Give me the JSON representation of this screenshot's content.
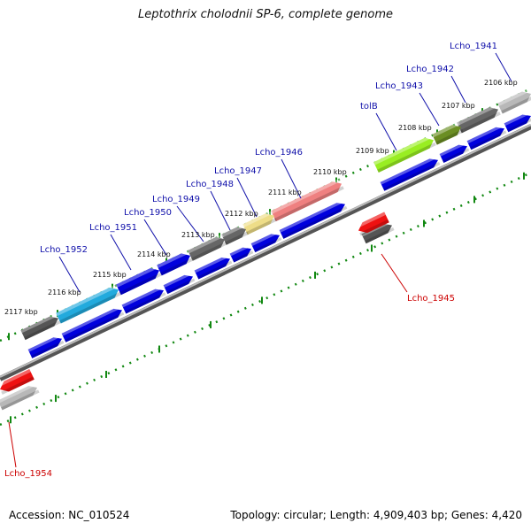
{
  "title": "Leptothrix cholodnii SP-6, complete genome",
  "footer": {
    "accession": "Accession: NC_010524",
    "summary": "Topology: circular; Length: 4,909,403 bp; Genes: 4,420"
  },
  "colors": {
    "backbone": "#8a8a8a",
    "tick": "#118811",
    "cds": "#0000dd",
    "label_forward": "#1010aa",
    "label_reverse": "#cc0000"
  },
  "kbp_ticks": [
    "2106 kbp",
    "2107 kbp",
    "2108 kbp",
    "2109 kbp",
    "2110 kbp",
    "2111 kbp",
    "2112 kbp",
    "2113 kbp",
    "2114 kbp",
    "2115 kbp",
    "2116 kbp",
    "2117 kbp"
  ],
  "genes": [
    {
      "name": "Lcho_1941",
      "strand": "forward",
      "color": "#b8b8b8"
    },
    {
      "name": "Lcho_1942",
      "strand": "forward",
      "color": "#666666"
    },
    {
      "name": "Lcho_1943",
      "strand": "forward",
      "color": "#6b8e23"
    },
    {
      "name": "tolB",
      "strand": "forward",
      "color": "#99ee22"
    },
    {
      "name": "Lcho_1945",
      "strand": "reverse",
      "color": "#ee1111"
    },
    {
      "name": "Lcho_1946",
      "strand": "forward",
      "color": "#ef8080"
    },
    {
      "name": "Lcho_1947",
      "strand": "forward",
      "color": "#eedd88"
    },
    {
      "name": "Lcho_1948",
      "strand": "forward",
      "color": "#666666"
    },
    {
      "name": "Lcho_1949",
      "strand": "forward",
      "color": "#666666"
    },
    {
      "name": "Lcho_1950",
      "strand": "forward",
      "color": "#0000dd"
    },
    {
      "name": "Lcho_1951",
      "strand": "forward",
      "color": "#0000dd"
    },
    {
      "name": "Lcho_1952",
      "strand": "forward",
      "color": "#22aadd"
    },
    {
      "name": "Lcho_1954",
      "strand": "reverse",
      "color": "#ee1111"
    }
  ]
}
